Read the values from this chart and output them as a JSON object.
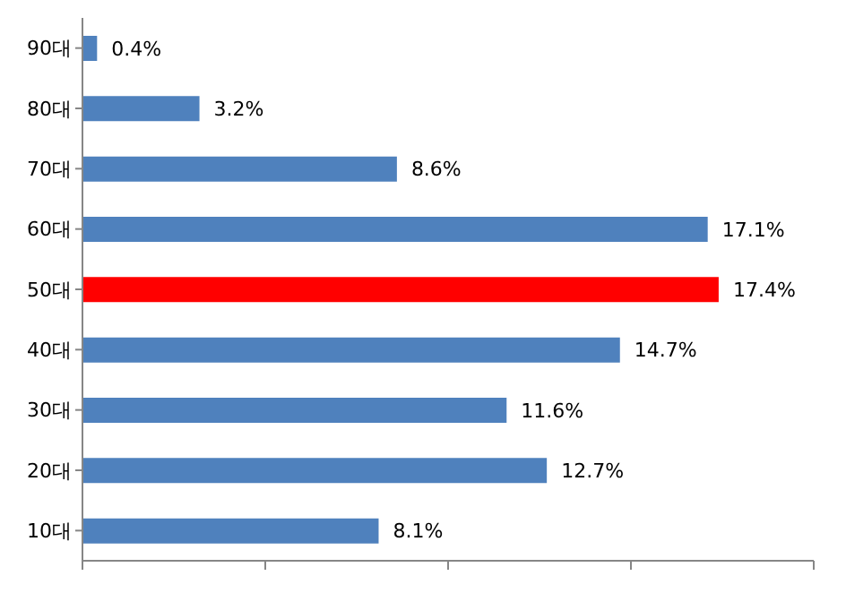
{
  "chart_data": {
    "type": "bar",
    "orientation": "horizontal",
    "categories": [
      "90대",
      "80대",
      "70대",
      "60대",
      "50대",
      "40대",
      "30대",
      "20대",
      "10대"
    ],
    "values": [
      0.4,
      3.2,
      8.6,
      17.1,
      17.4,
      14.7,
      11.6,
      12.7,
      8.1
    ],
    "colors": [
      "#4f81bd",
      "#4f81bd",
      "#4f81bd",
      "#4f81bd",
      "#ff0000",
      "#4f81bd",
      "#4f81bd",
      "#4f81bd",
      "#4f81bd"
    ],
    "value_labels": [
      "0.4%",
      "3.2%",
      "8.6%",
      "17.1%",
      "17.4%",
      "14.7%",
      "11.6%",
      "12.7%",
      "8.1%"
    ],
    "xlim": [
      0,
      20
    ],
    "xticks": [
      {
        "value": 0,
        "label": null
      },
      {
        "value": 5,
        "label": null
      },
      {
        "value": 10,
        "label": null
      },
      {
        "value": 15,
        "label": null
      },
      {
        "value": 20,
        "label": null
      }
    ],
    "tick_labels": "y"
  }
}
